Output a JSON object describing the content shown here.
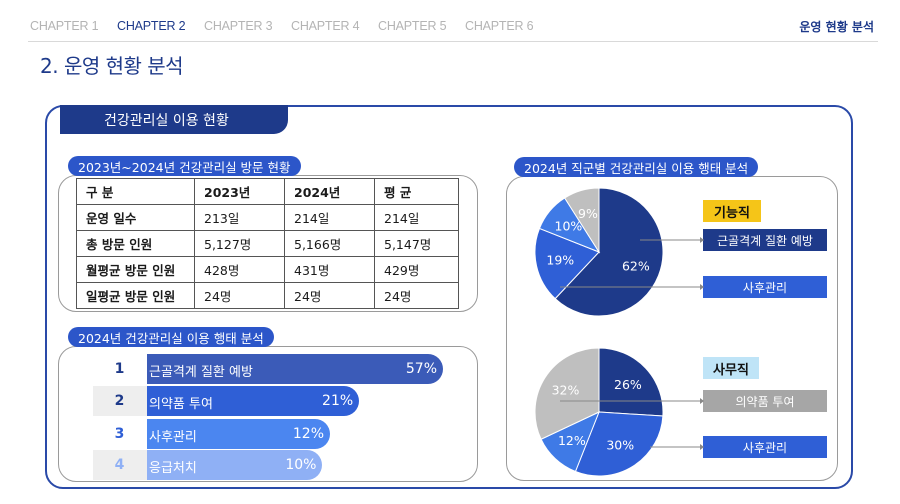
{
  "nav": {
    "chapters": [
      "CHAPTER 1",
      "CHAPTER 2",
      "CHAPTER 3",
      "CHAPTER 4",
      "CHAPTER 5",
      "CHAPTER 6"
    ],
    "active_index": 1,
    "section": "운영 현황 분석"
  },
  "page_title": "2. 운영 현황 분석",
  "panel_title": "건강관리실 이용 현황",
  "visit_section": {
    "title": "2023년~2024년 건강관리실 방문 현황",
    "headers": [
      "구 분",
      "2023년",
      "2024년",
      "평 균"
    ],
    "rows": [
      [
        "운영 일수",
        "213일",
        "214일",
        "214일"
      ],
      [
        "총 방문 인원",
        "5,127명",
        "5,166명",
        "5,147명"
      ],
      [
        "월평균 방문 인원",
        "428명",
        "431명",
        "429명"
      ],
      [
        "일평균 방문 인원",
        "24명",
        "24명",
        "24명"
      ]
    ]
  },
  "usage_section": {
    "title": "2024년 건강관리실 이용 행태 분석",
    "items": [
      {
        "rank": "1",
        "label": "근골격계 질환 예방",
        "value": 57,
        "display": "57%"
      },
      {
        "rank": "2",
        "label": "의약품 투여",
        "value": 21,
        "display": "21%"
      },
      {
        "rank": "3",
        "label": "사후관리",
        "value": 12,
        "display": "12%"
      },
      {
        "rank": "4",
        "label": "응급처치",
        "value": 10,
        "display": "10%"
      }
    ]
  },
  "job_section": {
    "title": "2024년 직군별 건강관리실 이용 행태 분석",
    "groups": [
      {
        "name": "기능직",
        "legend": [
          "근골격계 질환 예방",
          "사후관리"
        ],
        "slices": [
          {
            "value": 62,
            "label": "62%",
            "color": "#1e3a8a"
          },
          {
            "value": 19,
            "label": "19%",
            "color": "#2f5fd6"
          },
          {
            "value": 10,
            "label": "10%",
            "color": "#3f7ae6"
          },
          {
            "value": 9,
            "label": "9%",
            "color": "#bfbfbf"
          }
        ]
      },
      {
        "name": "사무직",
        "legend": [
          "의약품 투여",
          "사후관리"
        ],
        "slices": [
          {
            "value": 26,
            "label": "26%",
            "color": "#1e3a8a"
          },
          {
            "value": 30,
            "label": "30%",
            "color": "#2f5fd6"
          },
          {
            "value": 12,
            "label": "12%",
            "color": "#3f7ae6"
          },
          {
            "value": 32,
            "label": "32%",
            "color": "#bfbfbf"
          }
        ]
      }
    ]
  },
  "chart_data": [
    {
      "type": "table",
      "title": "2023년~2024년 건강관리실 방문 현황",
      "columns": [
        "구 분",
        "2023년",
        "2024년",
        "평 균"
      ],
      "rows": [
        [
          "운영 일수",
          "213일",
          "214일",
          "214일"
        ],
        [
          "총 방문 인원",
          "5,127명",
          "5,166명",
          "5,147명"
        ],
        [
          "월평균 방문 인원",
          "428명",
          "431명",
          "429명"
        ],
        [
          "일평균 방문 인원",
          "24명",
          "24명",
          "24명"
        ]
      ]
    },
    {
      "type": "bar",
      "title": "2024년 건강관리실 이용 행태 분석",
      "categories": [
        "근골격계 질환 예방",
        "의약품 투여",
        "사후관리",
        "응급처치"
      ],
      "values": [
        57,
        21,
        12,
        10
      ]
    },
    {
      "type": "pie",
      "title": "기능직",
      "values": [
        62,
        19,
        10,
        9
      ]
    },
    {
      "type": "pie",
      "title": "사무직",
      "values": [
        26,
        30,
        12,
        32
      ]
    }
  ],
  "colors": {
    "accent_dark": "#1e3a8a",
    "accent": "#2c56c9",
    "bar1": "#3b5bb8",
    "bar2": "#2f5fd6",
    "bar3": "#4b86f0",
    "bar4": "#8fb0f5",
    "tag_yellow": "#f5c518",
    "tag_cyan": "#bfe4f7",
    "legend_gray": "#a6a6a6"
  }
}
